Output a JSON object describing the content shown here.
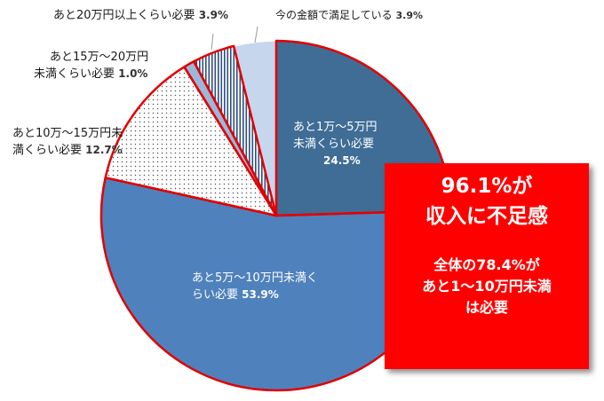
{
  "chart_data": {
    "type": "pie",
    "slices": [
      {
        "label_lines": [
          "あと1万〜5万円",
          "未満くらい必要"
        ],
        "value": 24.5,
        "pct_text": "24.5%",
        "color": "#3f6d96",
        "pattern": "solid"
      },
      {
        "label_lines": [
          "あと5万〜10万円未満く",
          "らい必要"
        ],
        "value": 53.9,
        "pct_text": "53.9%",
        "color": "#4f81bd",
        "pattern": "solid"
      },
      {
        "label_lines": [
          "あと10万〜15万円未",
          "満くらい必要"
        ],
        "value": 12.7,
        "pct_text": "12.7%",
        "color": "#ffffff",
        "pattern": "dots"
      },
      {
        "label_lines": [
          "あと15万〜20万円",
          "未満くらい必要"
        ],
        "value": 1.0,
        "pct_text": "1.0%",
        "color": "#9bb7d9",
        "pattern": "solid"
      },
      {
        "label_lines": [
          "あと20万円以上くらい必要"
        ],
        "value": 3.9,
        "pct_text": "3.9%",
        "color": "#ffffff",
        "pattern": "vlines"
      },
      {
        "label_lines": [
          "今の金額で満足している"
        ],
        "value": 3.9,
        "pct_text": "3.9%",
        "color": "#c6d6ec",
        "pattern": "solid"
      }
    ],
    "highlight_outline_color": "#e00000"
  },
  "callout": {
    "headline_1": "96.1%が",
    "headline_2": "収入に不足感",
    "sub_1": "全体の78.4%が",
    "sub_2": "あと1〜10万円未満",
    "sub_3": "は必要",
    "bg_color": "#ff0000"
  }
}
